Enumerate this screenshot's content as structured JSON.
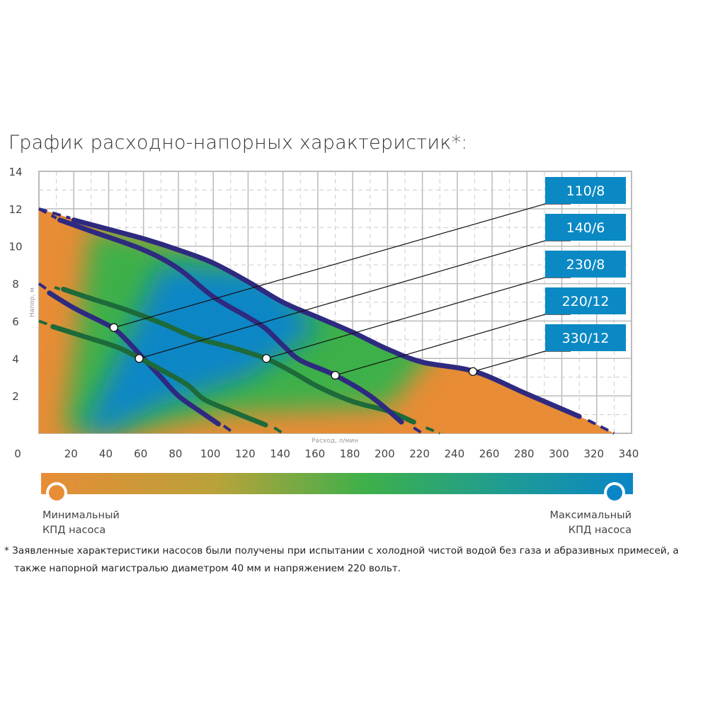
{
  "title": "График расходно-напорных характеристик*:",
  "chart_data": {
    "type": "line",
    "title": "График расходно-напорных характеристик*:",
    "xlabel": "Расход, л/мин",
    "ylabel": "Напор, м",
    "xlim": [
      0,
      340
    ],
    "ylim": [
      0,
      14
    ],
    "x_ticks": [
      "0",
      "20",
      "40",
      "60",
      "80",
      "100",
      "120",
      "140",
      "160",
      "180",
      "200",
      "220",
      "240",
      "260",
      "280",
      "300",
      "320",
      "340"
    ],
    "y_ticks": [
      "2",
      "4",
      "6",
      "8",
      "10",
      "12",
      "14"
    ],
    "grid": true,
    "background": "efficiency color map under curves",
    "series": [
      {
        "name": "110/8",
        "color": "#2e2a80",
        "extrap_start": [
          [
            0,
            8
          ],
          [
            6,
            7.6
          ]
        ],
        "points": [
          [
            6,
            7.5
          ],
          [
            20,
            6.7
          ],
          [
            35,
            6.0
          ],
          [
            43,
            5.6
          ],
          [
            50,
            5.0
          ],
          [
            60,
            4.0
          ],
          [
            70,
            3.0
          ],
          [
            80,
            2.0
          ],
          [
            92,
            1.2
          ],
          [
            103,
            0.5
          ]
        ],
        "extrap_end": [
          [
            106,
            0.4
          ],
          [
            112,
            0
          ]
        ],
        "duty_point": [
          43,
          5.65
        ]
      },
      {
        "name": "140/6",
        "color": "#1d6a3a",
        "extrap_start": [
          [
            0,
            6
          ],
          [
            6,
            5.8
          ]
        ],
        "points": [
          [
            8,
            5.7
          ],
          [
            25,
            5.2
          ],
          [
            45,
            4.6
          ],
          [
            58,
            4.0
          ],
          [
            70,
            3.4
          ],
          [
            85,
            2.6
          ],
          [
            95,
            1.8
          ],
          [
            110,
            1.2
          ],
          [
            130,
            0.45
          ]
        ],
        "extrap_end": [
          [
            135,
            0.3
          ],
          [
            140,
            0
          ]
        ],
        "duty_point": [
          57.5,
          4.0
        ]
      },
      {
        "name": "230/8",
        "color": "#1d6a3a",
        "extrap_start": [
          [
            9,
            7.8
          ],
          [
            12,
            7.7
          ]
        ],
        "points": [
          [
            14,
            7.7
          ],
          [
            30,
            7.2
          ],
          [
            50,
            6.6
          ],
          [
            70,
            5.9
          ],
          [
            90,
            5.1
          ],
          [
            110,
            4.6
          ],
          [
            130,
            4.0
          ],
          [
            145,
            3.3
          ],
          [
            160,
            2.5
          ],
          [
            180,
            1.7
          ],
          [
            200,
            1.2
          ],
          [
            215,
            0.6
          ]
        ],
        "extrap_end": [
          [
            222,
            0.3
          ],
          [
            230,
            0
          ]
        ],
        "duty_point": [
          130.5,
          4.0
        ]
      },
      {
        "name": "220/12",
        "color": "#2e2a80",
        "extrap_start": [
          [
            0,
            12
          ],
          [
            10,
            11.5
          ]
        ],
        "points": [
          [
            12,
            11.4
          ],
          [
            30,
            10.8
          ],
          [
            60,
            9.8
          ],
          [
            80,
            8.8
          ],
          [
            100,
            7.3
          ],
          [
            120,
            6.2
          ],
          [
            130,
            5.6
          ],
          [
            140,
            4.7
          ],
          [
            150,
            3.9
          ],
          [
            170,
            3.1
          ],
          [
            190,
            2.0
          ],
          [
            208,
            0.6
          ]
        ],
        "extrap_end": [
          [
            215,
            0.3
          ],
          [
            220,
            0
          ]
        ],
        "duty_point": [
          170,
          3.1
        ]
      },
      {
        "name": "330/12",
        "color": "#2e2a80",
        "extrap_start": [
          [
            0,
            12
          ],
          [
            18,
            11.5
          ]
        ],
        "points": [
          [
            20,
            11.4
          ],
          [
            40,
            10.9
          ],
          [
            60,
            10.4
          ],
          [
            80,
            9.8
          ],
          [
            100,
            9.1
          ],
          [
            120,
            8.1
          ],
          [
            140,
            7.0
          ],
          [
            160,
            6.2
          ],
          [
            180,
            5.4
          ],
          [
            200,
            4.5
          ],
          [
            220,
            3.8
          ],
          [
            250,
            3.3
          ],
          [
            280,
            2.1
          ],
          [
            310,
            0.9
          ]
        ],
        "extrap_end": [
          [
            315,
            0.7
          ],
          [
            330,
            0
          ]
        ],
        "duty_point": [
          249,
          3.3
        ]
      }
    ]
  },
  "colors": {
    "box": "#0a89c4",
    "min_eff": "#e88c35",
    "mid_eff": "#3db04a",
    "max_eff": "#0a86c6"
  },
  "legend": {
    "min_line1": "Минимальный",
    "min_line2": "КПД насоса",
    "max_line1": "Максимальный",
    "max_line2": "КПД насоса"
  },
  "footnote": {
    "line1": "* Заявленные характеристики насосов были получены при испытании с холодной чистой водой без газа и абразивных примесей, а",
    "line2": "также напорной магистралью диаметром 40 мм и напряжением 220 вольт."
  }
}
